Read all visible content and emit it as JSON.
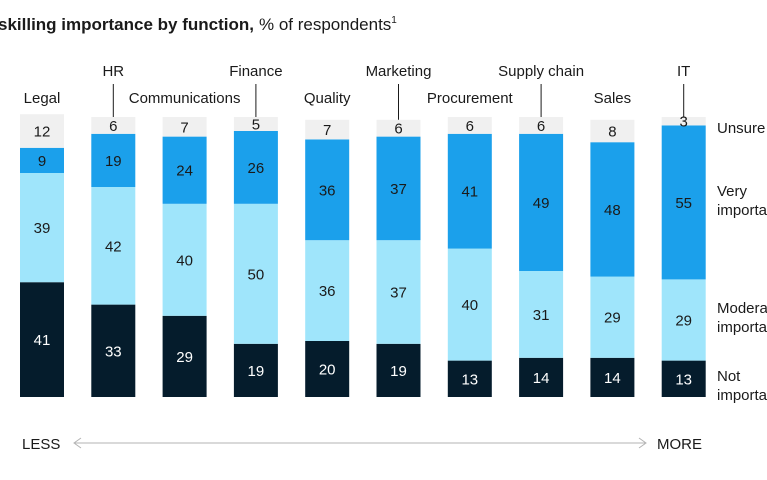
{
  "chart_data": {
    "type": "bar",
    "stacked": true,
    "title": "skilling importance by function,",
    "subtitle": "% of respondents",
    "footnote_marker": "1",
    "categories": [
      "Legal",
      "HR",
      "Communications",
      "Finance",
      "Quality",
      "Marketing",
      "Procurement",
      "Supply chain",
      "Sales",
      "IT"
    ],
    "series": [
      {
        "name": "Unsure",
        "legend_lines": [
          "Unsure"
        ],
        "color": "#f0f0f0",
        "label_color": "#1a1a1a",
        "values": [
          12,
          6,
          7,
          5,
          7,
          6,
          6,
          6,
          8,
          3
        ]
      },
      {
        "name": "Very important",
        "legend_lines": [
          "Very",
          "importa"
        ],
        "color": "#1ba0eb",
        "label_color": "#1a1a1a",
        "values": [
          9,
          19,
          24,
          26,
          36,
          37,
          41,
          49,
          48,
          55
        ]
      },
      {
        "name": "Moderately important",
        "legend_lines": [
          "Modera",
          "importa"
        ],
        "color": "#9fe5fb",
        "label_color": "#1a1a1a",
        "values": [
          39,
          42,
          40,
          50,
          36,
          37,
          40,
          31,
          29,
          29
        ]
      },
      {
        "name": "Not important",
        "legend_lines": [
          "Not",
          "importa"
        ],
        "color": "#051c2c",
        "label_color": "#ffffff",
        "values": [
          41,
          33,
          29,
          19,
          20,
          19,
          13,
          14,
          14,
          13
        ]
      }
    ],
    "axis_labels": {
      "left": "LESS",
      "right": "MORE"
    },
    "ylim": [
      0,
      100
    ],
    "grid": false,
    "legend_position": "right"
  }
}
